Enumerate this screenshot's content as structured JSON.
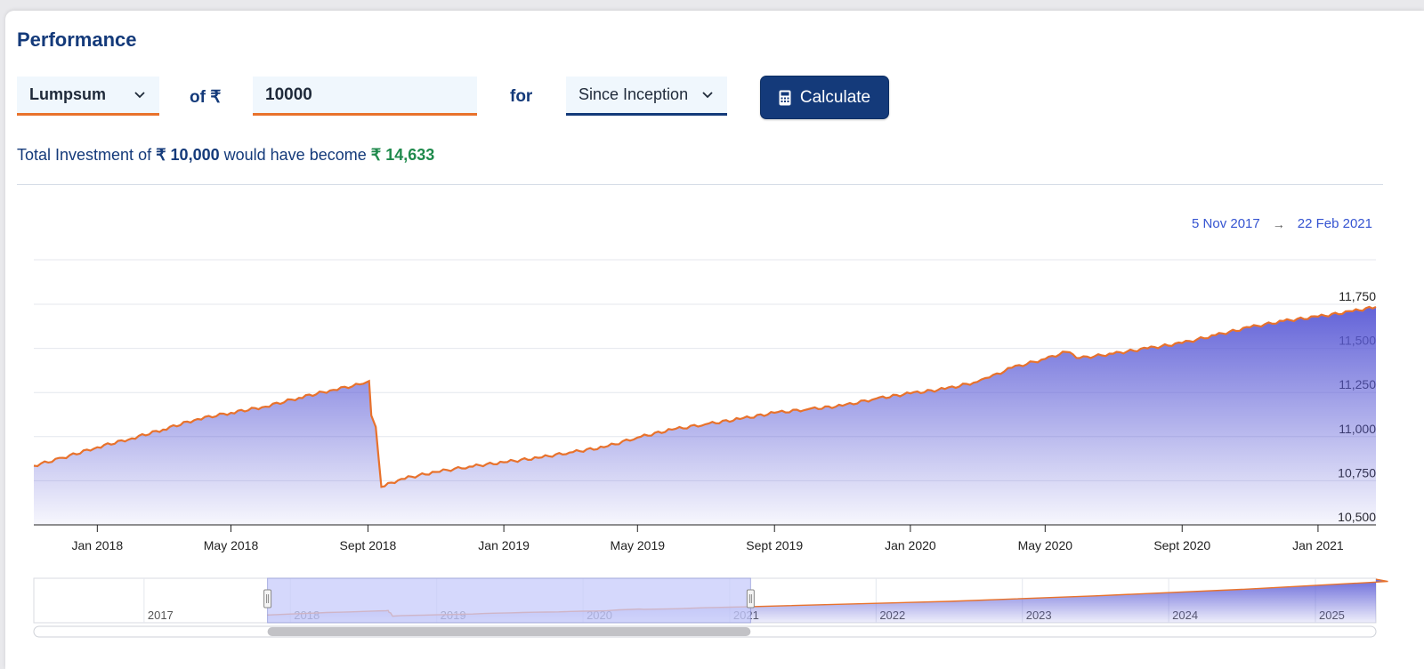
{
  "header": {
    "title": "Performance"
  },
  "form": {
    "mode": "Lumpsum",
    "of_label": "of ₹",
    "amount": "10000",
    "for_label": "for",
    "period": "Since Inception",
    "calculate_label": "Calculate"
  },
  "summary": {
    "prefix": "Total Investment of",
    "investment": "₹ 10,000",
    "middle": "would have become",
    "result": "₹ 14,633"
  },
  "range": {
    "from": "5 Nov 2017",
    "arrow": "→",
    "to": "22 Feb 2021"
  },
  "colors": {
    "brand": "#143a7a",
    "accent": "#e8722c",
    "positive": "#1f8a4c",
    "area_fill": "#5b5bd6",
    "navigator_mask": "#c7ccfb"
  },
  "icons": {
    "dropdown": "chevron-down-icon",
    "calculate": "calculator-icon"
  },
  "chart_data": {
    "type": "area",
    "title": "",
    "xlabel": "",
    "ylabel": "",
    "ylim": [
      10500,
      11750
    ],
    "yticks": [
      "10,500",
      "10,750",
      "11,000",
      "11,250",
      "11,500",
      "11,750"
    ],
    "ytick_values": [
      10500,
      10750,
      11000,
      11250,
      11500,
      11750
    ],
    "xticks": [
      "Jan 2018",
      "May 2018",
      "Sept 2018",
      "Jan 2019",
      "May 2019",
      "Sept 2019",
      "Jan 2020",
      "May 2020",
      "Sept 2020",
      "Jan 2021"
    ],
    "xtick_dates": [
      "2018-01-01",
      "2018-05-01",
      "2018-09-01",
      "2019-01-01",
      "2019-05-01",
      "2019-09-01",
      "2020-01-01",
      "2020-05-01",
      "2020-09-01",
      "2021-01-01"
    ],
    "xlim": [
      "2017-11-05",
      "2021-02-22"
    ],
    "grid": true,
    "series": [
      {
        "x": [
          "2017-11-05",
          "2017-12-01",
          "2018-01-01",
          "2018-02-01",
          "2018-03-01",
          "2018-04-01",
          "2018-05-01",
          "2018-06-01",
          "2018-07-01",
          "2018-08-01",
          "2018-08-28",
          "2018-09-02",
          "2018-09-04",
          "2018-09-08",
          "2018-09-13",
          "2018-10-01",
          "2018-11-01",
          "2018-12-01",
          "2019-01-01",
          "2019-02-01",
          "2019-03-01",
          "2019-04-01",
          "2019-05-01",
          "2019-06-01",
          "2019-07-01",
          "2019-08-01",
          "2019-09-01",
          "2019-10-01",
          "2019-11-01",
          "2019-12-01",
          "2020-01-01",
          "2020-02-01",
          "2020-03-01",
          "2020-03-12",
          "2020-04-01",
          "2020-05-01",
          "2020-05-20",
          "2020-06-01",
          "2020-07-01",
          "2020-08-01",
          "2020-09-01",
          "2020-10-01",
          "2020-11-01",
          "2020-12-01",
          "2021-01-01",
          "2021-02-01",
          "2021-02-22"
        ],
        "values": [
          10835,
          10880,
          10940,
          10990,
          11040,
          11100,
          11135,
          11170,
          11220,
          11265,
          11300,
          11315,
          11120,
          11055,
          10715,
          10760,
          10800,
          10830,
          10855,
          10880,
          10910,
          10940,
          10995,
          11040,
          11070,
          11100,
          11135,
          11155,
          11175,
          11215,
          11245,
          11270,
          11310,
          11335,
          11390,
          11440,
          11480,
          11445,
          11470,
          11500,
          11530,
          11575,
          11620,
          11655,
          11680,
          11710,
          11735
        ]
      }
    ],
    "navigator": {
      "labels": [
        "2017",
        "2018",
        "2019",
        "2020",
        "2021",
        "2022",
        "2023",
        "2024",
        "2025"
      ],
      "label_years": [
        2017,
        2018,
        2019,
        2020,
        2021,
        2022,
        2023,
        2024,
        2025
      ],
      "selected_range": [
        "2017-11-05",
        "2021-02-22"
      ]
    }
  }
}
